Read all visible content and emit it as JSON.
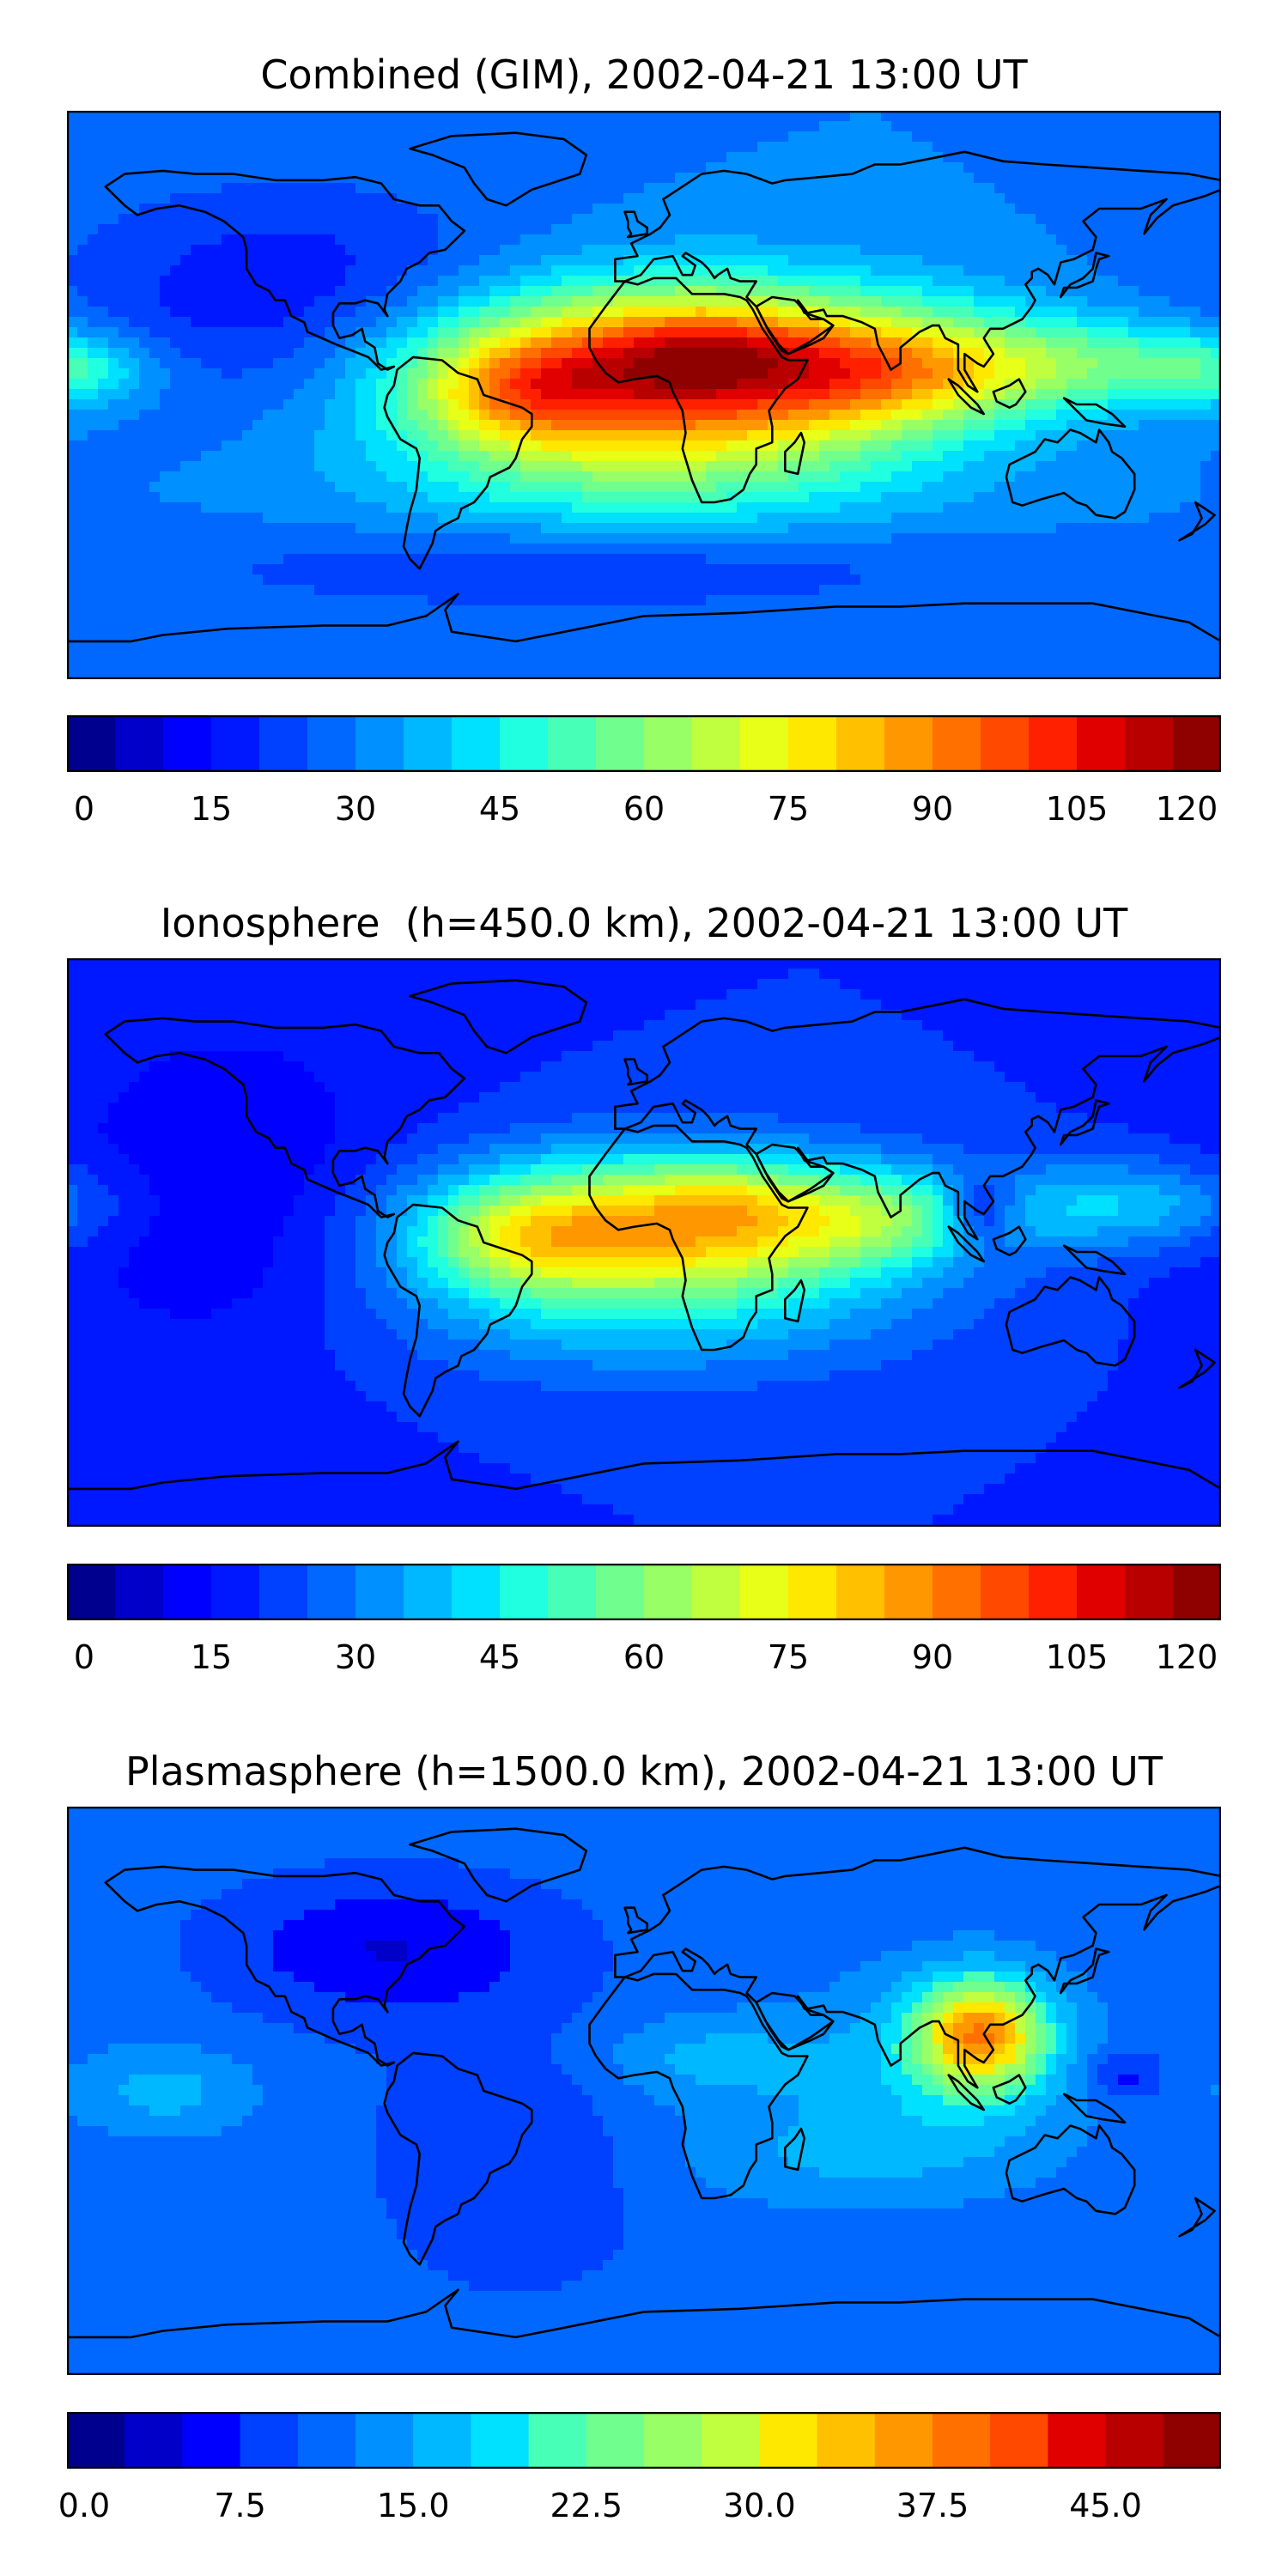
{
  "palette": [
    "#00008f",
    "#0000c8",
    "#0000ff",
    "#0018ff",
    "#0040ff",
    "#0068ff",
    "#0090ff",
    "#00b8ff",
    "#00e0ff",
    "#20ffdf",
    "#48ffb7",
    "#70ff8f",
    "#98ff67",
    "#c0ff3f",
    "#e8ff17",
    "#ffe800",
    "#ffc000",
    "#ff9800",
    "#ff7000",
    "#ff4800",
    "#ff2000",
    "#e00000",
    "#b80000",
    "#8f0000"
  ],
  "outline_color": "#000000",
  "panels": [
    {
      "title": "Combined (GIM), 2002-04-21 13:00 UT",
      "colorbar": {
        "min": 0,
        "max": 120,
        "levels": 24,
        "ticks": [
          "0",
          "15",
          "30",
          "45",
          "60",
          "75",
          "90",
          "105",
          "120"
        ]
      },
      "field": {
        "background": 30,
        "blobs": [
          {
            "lon": 10,
            "lat": 8,
            "sx": 55,
            "sy": 18,
            "amp": 78
          },
          {
            "lon": 20,
            "lat": 14,
            "sx": 20,
            "sy": 8,
            "amp": 12
          },
          {
            "lon": -40,
            "lat": 0,
            "sx": 22,
            "sy": 12,
            "amp": 22
          },
          {
            "lon": 80,
            "lat": 8,
            "sx": 30,
            "sy": 12,
            "amp": 28
          },
          {
            "lon": 140,
            "lat": 10,
            "sx": 30,
            "sy": 10,
            "amp": 22
          },
          {
            "lon": -178,
            "lat": 8,
            "sx": 18,
            "sy": 8,
            "amp": 18
          },
          {
            "lon": 0,
            "lat": -25,
            "sx": 60,
            "sy": 15,
            "amp": 18
          },
          {
            "lon": -20,
            "lat": -55,
            "sx": 90,
            "sy": 10,
            "amp": -10
          },
          {
            "lon": -110,
            "lat": 30,
            "sx": 50,
            "sy": 25,
            "amp": -15
          }
        ]
      }
    },
    {
      "title": "Ionosphere  (h=450.0 km), 2002-04-21 13:00 UT",
      "colorbar": {
        "min": 0,
        "max": 120,
        "levels": 24,
        "ticks": [
          "0",
          "15",
          "30",
          "45",
          "60",
          "75",
          "90",
          "105",
          "120"
        ]
      },
      "field": {
        "background": 20,
        "blobs": [
          {
            "lon": 8,
            "lat": 5,
            "sx": 50,
            "sy": 16,
            "amp": 62
          },
          {
            "lon": 25,
            "lat": 14,
            "sx": 16,
            "sy": 7,
            "amp": 10
          },
          {
            "lon": -40,
            "lat": 0,
            "sx": 22,
            "sy": 12,
            "amp": 20
          },
          {
            "lon": 75,
            "lat": 8,
            "sx": 25,
            "sy": 10,
            "amp": 20
          },
          {
            "lon": 150,
            "lat": 12,
            "sx": 30,
            "sy": 10,
            "amp": 20
          },
          {
            "lon": 105,
            "lat": 10,
            "sx": 8,
            "sy": 8,
            "amp": -22
          },
          {
            "lon": 0,
            "lat": -25,
            "sx": 60,
            "sy": 15,
            "amp": 14
          },
          {
            "lon": -130,
            "lat": 15,
            "sx": 40,
            "sy": 40,
            "amp": -10
          }
        ]
      }
    },
    {
      "title": "Plasmasphere (h=1500.0 km), 2002-04-21 13:00 UT",
      "colorbar": {
        "min": 0,
        "max": 50,
        "levels": 20,
        "ticks": [
          "0.0",
          "7.5",
          "15.0",
          "22.5",
          "30.0",
          "37.5",
          "45.0"
        ]
      },
      "field": {
        "background": 11,
        "blobs": [
          {
            "lon": 105,
            "lat": 18,
            "sx": 14,
            "sy": 12,
            "amp": 22
          },
          {
            "lon": 95,
            "lat": 10,
            "sx": 30,
            "sy": 20,
            "amp": 6
          },
          {
            "lon": -80,
            "lat": 45,
            "sx": 35,
            "sy": 15,
            "amp": -6
          },
          {
            "lon": 20,
            "lat": 10,
            "sx": 25,
            "sy": 10,
            "amp": 5
          },
          {
            "lon": -150,
            "lat": 0,
            "sx": 20,
            "sy": 10,
            "amp": 5
          },
          {
            "lon": 60,
            "lat": -20,
            "sx": 40,
            "sy": 12,
            "amp": 4
          },
          {
            "lon": -40,
            "lat": -20,
            "sx": 30,
            "sy": 30,
            "amp": -3
          },
          {
            "lon": 150,
            "lat": 5,
            "sx": 8,
            "sy": 6,
            "amp": -5
          }
        ]
      }
    }
  ]
}
